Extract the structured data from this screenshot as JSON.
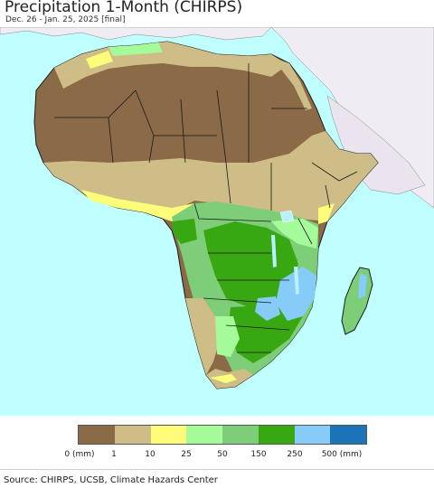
{
  "header": {
    "title": "Precipitation 1-Month (CHIRPS)",
    "subtitle": "Dec. 26 - Jan. 25, 2025 [final]"
  },
  "colors": {
    "ocean": "#bfffff",
    "non_africa_land": "#f0ecf3",
    "lake": "#b7f0ff",
    "border": "#1a1a1a"
  },
  "legend": {
    "swatches": [
      "#8b6a47",
      "#cfbd87",
      "#fdfd7a",
      "#a5fb9a",
      "#7ecd78",
      "#38a812",
      "#87cbf8",
      "#1b74b8"
    ],
    "ticks": [
      "0 (mm)",
      "1",
      "10",
      "25",
      "50",
      "150",
      "250",
      "500 (mm)"
    ]
  },
  "footer": {
    "source": "Source: CHIRPS, UCSB, Climate Hazards Center"
  }
}
